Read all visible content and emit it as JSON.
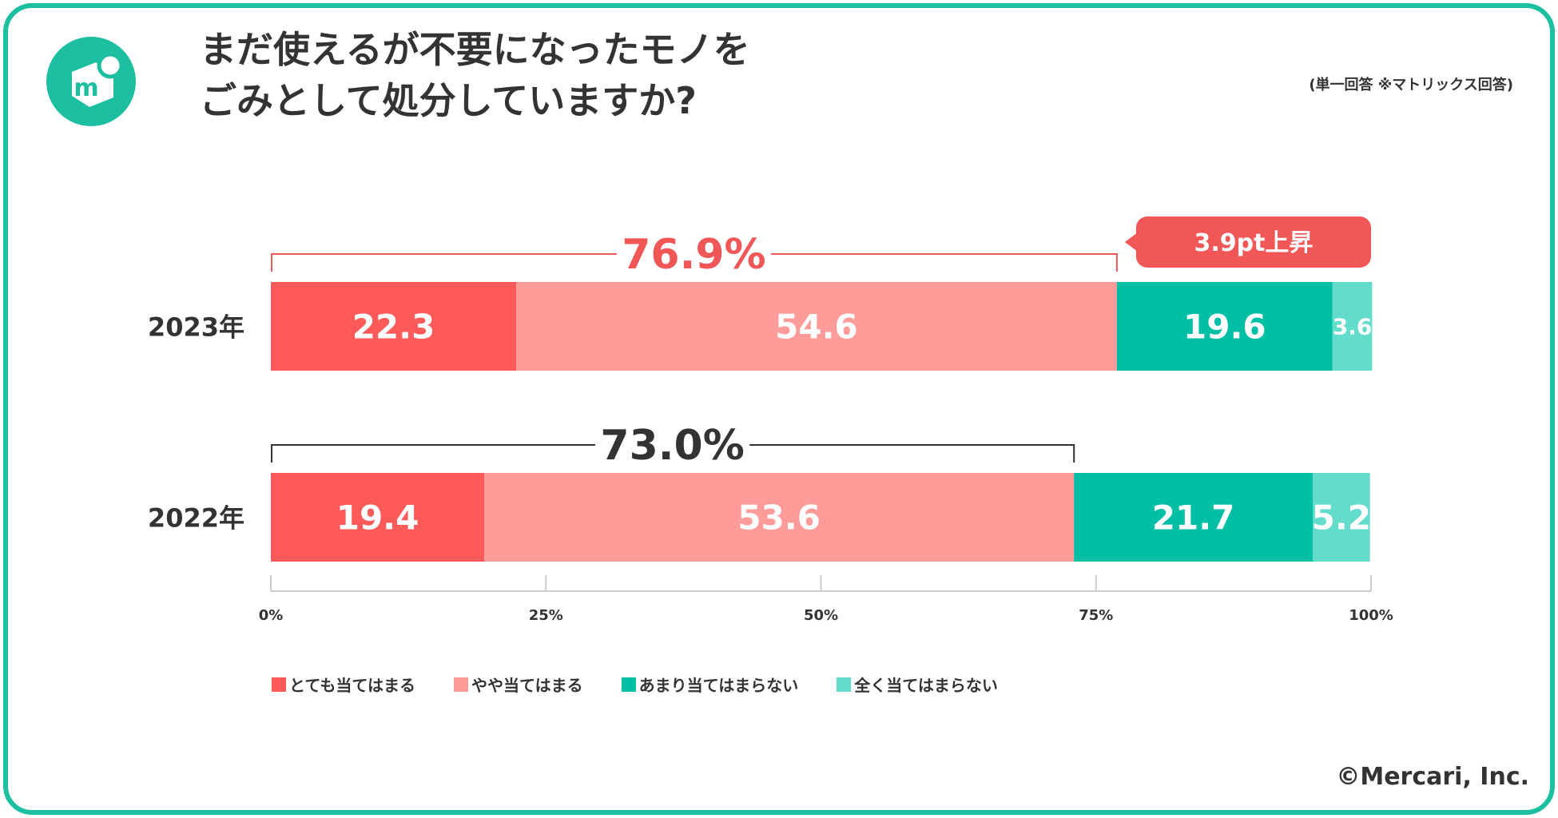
{
  "header": {
    "title_line1": "まだ使えるが不要になったモノを",
    "title_line2": "ごみとして処分していますか?",
    "note": "(単一回答 ※マトリックス回答)"
  },
  "logo": {
    "letter": "m",
    "icon": "mercari-logo-icon"
  },
  "chart_data": {
    "type": "bar",
    "orientation": "horizontal",
    "stacked": true,
    "categories": [
      "2023年",
      "2022年"
    ],
    "series": [
      {
        "name": "とても当てはまる",
        "color": "#ff5a5a",
        "values": [
          22.3,
          19.4
        ]
      },
      {
        "name": "やや当てはまる",
        "color": "#ff9c99",
        "values": [
          54.6,
          53.6
        ]
      },
      {
        "name": "あまり当てはまらない",
        "color": "#00bfa5",
        "values": [
          19.6,
          21.7
        ]
      },
      {
        "name": "全く当てはまらない",
        "color": "#63dccb",
        "values": [
          3.6,
          5.2
        ]
      }
    ],
    "xlim": [
      0,
      100
    ],
    "xticks": [
      0,
      25,
      50,
      75,
      100
    ],
    "xtick_labels": [
      "0%",
      "25%",
      "50%",
      "75%",
      "100%"
    ],
    "annotations": [
      {
        "row": 0,
        "label": "76.9%",
        "from": 0,
        "to": 76.9,
        "color": "#f25757"
      },
      {
        "row": 1,
        "label": "73.0%",
        "from": 0,
        "to": 73.0,
        "color": "#333333"
      }
    ],
    "callout": {
      "row": 0,
      "label": "3.9pt上昇",
      "color": "#f25757"
    },
    "legend_position": "bottom"
  },
  "footer": {
    "credit": "©Mercari, Inc."
  }
}
